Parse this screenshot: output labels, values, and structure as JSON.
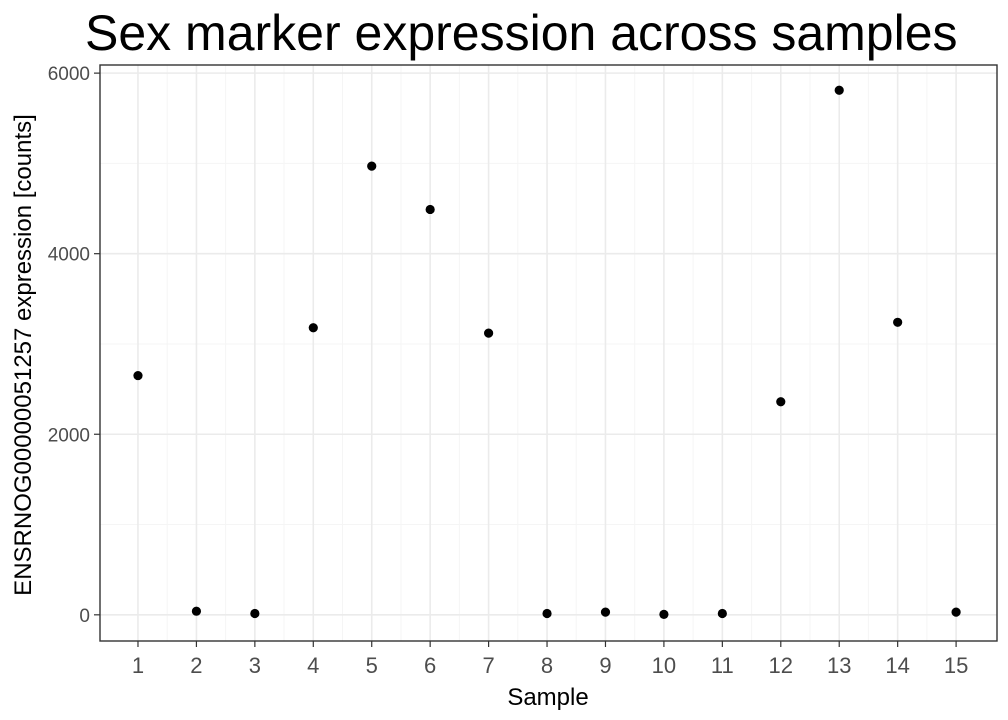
{
  "chart_data": {
    "type": "scatter",
    "title": "Sex marker expression across samples",
    "xlabel": "Sample",
    "ylabel": "ENSRNOG00000051257 expression [counts]",
    "x": [
      1,
      2,
      3,
      4,
      5,
      6,
      7,
      8,
      9,
      10,
      11,
      12,
      13,
      14,
      15
    ],
    "y": [
      2650,
      40,
      15,
      3180,
      4970,
      4490,
      3120,
      15,
      30,
      5,
      15,
      2360,
      5810,
      3240,
      30
    ],
    "xticks": [
      "1",
      "2",
      "3",
      "4",
      "5",
      "6",
      "7",
      "8",
      "9",
      "10",
      "11",
      "12",
      "13",
      "14",
      "15"
    ],
    "yticks": [
      0,
      2000,
      4000,
      6000
    ],
    "xlim": [
      0.35,
      15.7
    ],
    "ylim": [
      -290,
      6090
    ],
    "grid": true,
    "legend": "none",
    "colors": {
      "point": "#000000",
      "grid_major": "#ebebeb",
      "grid_minor": "#f5f5f5",
      "panel_border": "#333333",
      "background": "#ffffff"
    }
  }
}
